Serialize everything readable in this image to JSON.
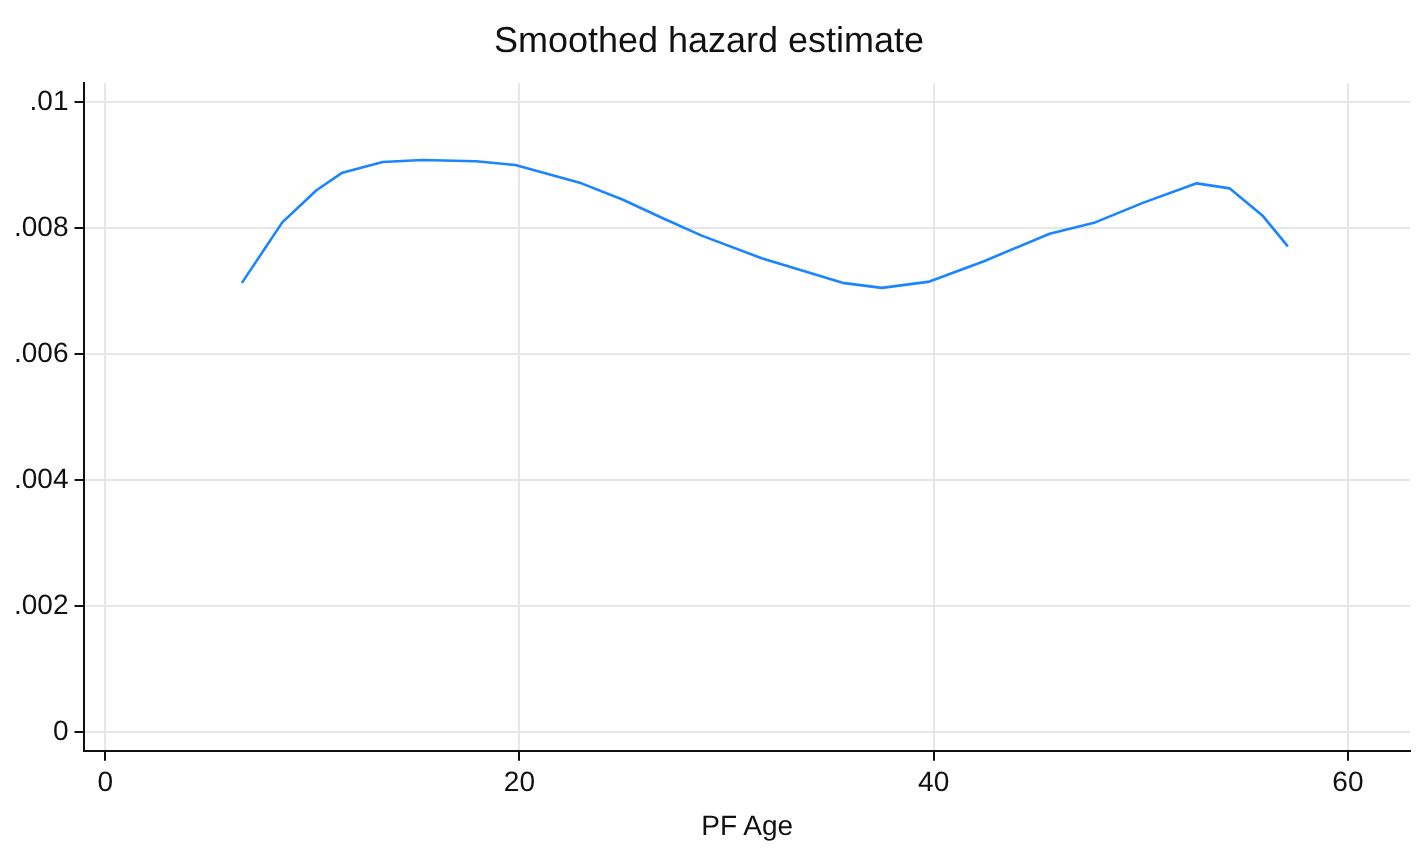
{
  "chart_data": {
    "type": "line",
    "title": "Smoothed hazard estimate",
    "xlabel": "PF Age",
    "series": [
      {
        "color": "#1a85ff",
        "x": [
          6.6,
          8.55,
          10.2,
          11.45,
          13.4,
          15.3,
          17.9,
          19.8,
          23.0,
          25.0,
          26.9,
          28.8,
          31.7,
          35.6,
          37.5,
          39.8,
          42.4,
          45.6,
          47.8,
          50.1,
          52.7,
          54.3,
          55.9,
          57.1
        ],
        "values": [
          0.00713,
          0.00809,
          0.0086,
          0.00888,
          0.00905,
          0.00908,
          0.00906,
          0.009,
          0.00871,
          0.00845,
          0.00816,
          0.00788,
          0.00752,
          0.00713,
          0.00705,
          0.00715,
          0.00747,
          0.00791,
          0.00809,
          0.0084,
          0.00871,
          0.00863,
          0.00819,
          0.00771
        ]
      }
    ],
    "xlim": [
      -1,
      63
    ],
    "xticks": [
      0,
      20,
      40,
      60
    ],
    "ylim": [
      -0.0003,
      0.0103
    ],
    "yticks": [
      {
        "value": 0,
        "label": "0"
      },
      {
        "value": 0.002,
        "label": ".002"
      },
      {
        "value": 0.004,
        "label": ".004"
      },
      {
        "value": 0.006,
        "label": ".006"
      },
      {
        "value": 0.008,
        "label": ".008"
      },
      {
        "value": 0.01,
        "label": ".01"
      }
    ],
    "grid": true,
    "legend": false,
    "marker": "none",
    "line_style": "solid"
  }
}
